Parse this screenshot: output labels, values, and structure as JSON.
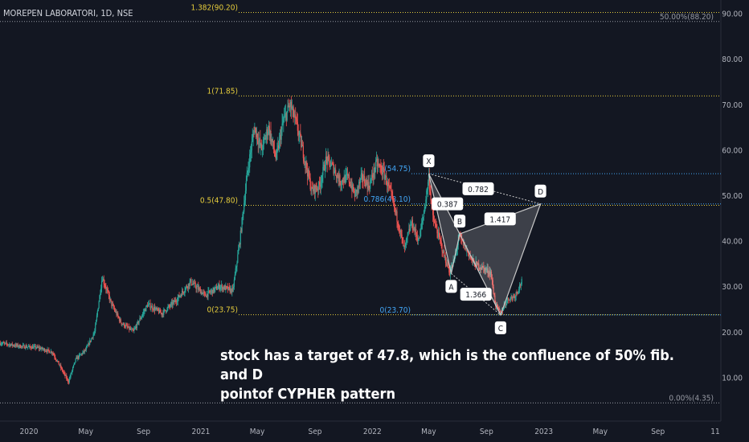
{
  "header": {
    "symbol": "MOREPEN LABORATORI, 1D, NSE"
  },
  "annotation": {
    "line1": "stock has a target of 47.8, which is the confluence of 50% fib. and D",
    "line2": "pointof CYPHER pattern"
  },
  "colors": {
    "background": "#131722",
    "bull": "#26a69a",
    "bear": "#ef5350",
    "fib_yellow": "#e6cd3c",
    "fib_blue": "#42a5f5",
    "fib_grey": "#9598a1",
    "pattern_stroke": "#c8c8c8",
    "pattern_fill": "#ffffff"
  },
  "chart_data": {
    "type": "candlestick",
    "y_axis": {
      "ticks": [
        "10.00",
        "20.00",
        "30.00",
        "40.00",
        "50.00",
        "60.00",
        "70.00",
        "80.00",
        "90.00"
      ],
      "range": [
        1,
        92
      ]
    },
    "x_axis": {
      "ticks": [
        {
          "label": "2020",
          "date": "2020-01-01"
        },
        {
          "label": "May",
          "date": "2020-05-01"
        },
        {
          "label": "Sep",
          "date": "2020-09-01"
        },
        {
          "label": "2021",
          "date": "2021-01-01"
        },
        {
          "label": "May",
          "date": "2021-05-01"
        },
        {
          "label": "Sep",
          "date": "2021-09-01"
        },
        {
          "label": "2022",
          "date": "2022-01-01"
        },
        {
          "label": "May",
          "date": "2022-05-01"
        },
        {
          "label": "Sep",
          "date": "2022-09-01"
        },
        {
          "label": "2023",
          "date": "2023-01-01"
        },
        {
          "label": "May",
          "date": "2023-05-01"
        },
        {
          "label": "Sep",
          "date": "2023-09-01"
        },
        {
          "label": "11",
          "date": "2024-01-01"
        }
      ]
    },
    "price_path": [
      [
        "2019-11-01",
        17.5
      ],
      [
        "2019-12-15",
        16.8
      ],
      [
        "2020-01-20",
        16.5
      ],
      [
        "2020-02-20",
        15.5
      ],
      [
        "2020-03-25",
        9
      ],
      [
        "2020-04-10",
        14
      ],
      [
        "2020-05-01",
        16
      ],
      [
        "2020-05-20",
        20
      ],
      [
        "2020-06-05",
        32
      ],
      [
        "2020-06-25",
        26
      ],
      [
        "2020-07-15",
        22
      ],
      [
        "2020-08-10",
        20
      ],
      [
        "2020-09-10",
        26
      ],
      [
        "2020-10-10",
        24
      ],
      [
        "2020-11-10",
        27
      ],
      [
        "2020-12-10",
        31
      ],
      [
        "2021-01-10",
        28
      ],
      [
        "2021-02-10",
        30
      ],
      [
        "2021-03-10",
        29
      ],
      [
        "2021-03-25",
        40
      ],
      [
        "2021-04-10",
        55
      ],
      [
        "2021-04-25",
        65
      ],
      [
        "2021-05-10",
        60
      ],
      [
        "2021-05-25",
        65
      ],
      [
        "2021-06-10",
        58
      ],
      [
        "2021-06-25",
        66
      ],
      [
        "2021-07-10",
        70
      ],
      [
        "2021-07-25",
        65
      ],
      [
        "2021-08-10",
        58
      ],
      [
        "2021-08-25",
        51
      ],
      [
        "2021-09-10",
        52
      ],
      [
        "2021-09-25",
        58
      ],
      [
        "2021-10-10",
        56
      ],
      [
        "2021-10-25",
        53
      ],
      [
        "2021-11-10",
        54
      ],
      [
        "2021-11-25",
        50
      ],
      [
        "2021-12-10",
        54
      ],
      [
        "2021-12-25",
        52
      ],
      [
        "2022-01-10",
        57
      ],
      [
        "2022-01-25",
        55
      ],
      [
        "2022-02-10",
        50
      ],
      [
        "2022-02-25",
        44
      ],
      [
        "2022-03-10",
        38
      ],
      [
        "2022-03-25",
        44
      ],
      [
        "2022-04-10",
        40
      ],
      [
        "2022-04-22",
        47
      ],
      [
        "2022-05-01",
        54
      ],
      [
        "2022-05-10",
        45
      ],
      [
        "2022-05-25",
        40
      ],
      [
        "2022-06-05",
        36
      ],
      [
        "2022-06-15",
        33
      ],
      [
        "2022-06-25",
        36
      ],
      [
        "2022-07-05",
        41
      ],
      [
        "2022-07-20",
        38
      ],
      [
        "2022-08-05",
        35
      ],
      [
        "2022-08-25",
        34
      ],
      [
        "2022-09-10",
        33
      ],
      [
        "2022-09-20",
        26
      ],
      [
        "2022-10-01",
        24
      ],
      [
        "2022-10-15",
        27
      ],
      [
        "2022-11-01",
        28
      ],
      [
        "2022-11-15",
        31
      ]
    ],
    "fib_levels": [
      {
        "label": "1.382(90.20)",
        "value": 90.2,
        "color": "yellow"
      },
      {
        "label": "1(71.85)",
        "value": 71.85,
        "color": "yellow"
      },
      {
        "label": "0.5(47.80)",
        "value": 47.8,
        "color": "yellow"
      },
      {
        "label": "0(23.75)",
        "value": 23.75,
        "color": "yellow"
      },
      {
        "label": "1(54.75)",
        "value": 54.75,
        "color": "blue"
      },
      {
        "label": "0.786(48.10)",
        "value": 48.1,
        "color": "blue"
      },
      {
        "label": "0(23.70)",
        "value": 23.7,
        "color": "blue"
      },
      {
        "label": "50.00%(88.20)",
        "value": 88.2,
        "color": "grey"
      },
      {
        "label": "0.00%(4.35)",
        "value": 4.35,
        "color": "grey"
      }
    ],
    "pattern": {
      "name": "CYPHER",
      "points": [
        {
          "label": "X",
          "date": "2022-05-01",
          "value": 54.75
        },
        {
          "label": "A",
          "date": "2022-06-18",
          "value": 32.8
        },
        {
          "label": "B",
          "date": "2022-07-06",
          "value": 41.5
        },
        {
          "label": "C",
          "date": "2022-10-01",
          "value": 23.7
        },
        {
          "label": "D",
          "date": "2022-12-25",
          "value": 48.1
        }
      ],
      "ratios": [
        "0.387",
        "1.366",
        "1.417",
        "0.782"
      ]
    }
  }
}
